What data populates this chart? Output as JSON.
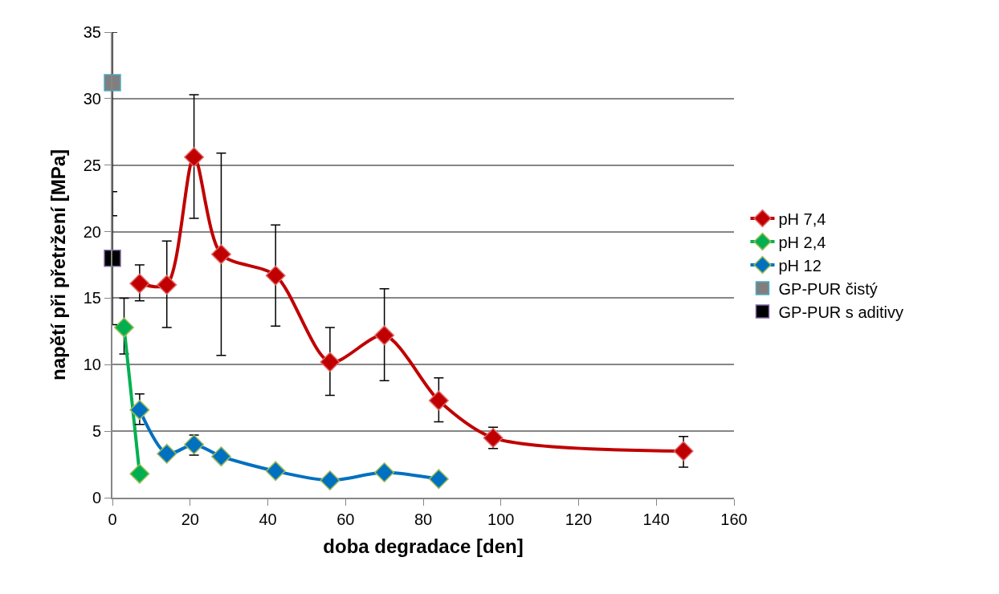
{
  "chart_data": {
    "type": "line",
    "xlabel": "doba degradace [den]",
    "ylabel": "napětí při přetržení [MPa]",
    "xlim": [
      0,
      160
    ],
    "xticks": [
      0,
      20,
      40,
      60,
      80,
      100,
      120,
      140,
      160
    ],
    "ylim": [
      0,
      35
    ],
    "yticks": [
      0,
      5,
      10,
      15,
      20,
      25,
      30,
      35
    ],
    "grid": "y",
    "legend": "right",
    "marker": "diamond",
    "line_style": "solid",
    "series": [
      {
        "name": "pH 7,4",
        "color": "#c00000",
        "x": [
          7,
          14,
          21,
          28,
          42,
          56,
          70,
          84,
          98,
          147
        ],
        "values": [
          16.1,
          16.0,
          25.6,
          18.3,
          16.7,
          10.2,
          12.2,
          7.3,
          4.5,
          3.5
        ],
        "errors": [
          [
            14.8,
            17.5
          ],
          [
            12.8,
            19.3
          ],
          [
            21.0,
            30.3
          ],
          [
            10.7,
            25.9
          ],
          [
            12.9,
            20.5
          ],
          [
            7.7,
            12.8
          ],
          [
            8.8,
            15.7
          ],
          [
            5.7,
            9.0
          ],
          [
            3.7,
            5.3
          ],
          [
            2.3,
            4.6
          ]
        ]
      },
      {
        "name": "pH 2,4",
        "color": "#00b050",
        "x": [
          3,
          7
        ],
        "values": [
          12.8,
          1.8
        ],
        "errors": [
          [
            10.8,
            15.0
          ],
          null
        ]
      },
      {
        "name": "pH 12",
        "color": "#0070c0",
        "x": [
          7,
          14,
          21,
          28,
          42,
          56,
          70,
          84
        ],
        "values": [
          6.6,
          3.3,
          4.0,
          3.1,
          2.0,
          1.3,
          1.9,
          1.4
        ],
        "errors": [
          [
            5.5,
            7.8
          ],
          null,
          [
            3.2,
            4.7
          ],
          null,
          null,
          null,
          null,
          null
        ]
      },
      {
        "name": "GP-PUR čistý",
        "color": "#7f7f7f",
        "type": "scatter",
        "marker": "square",
        "x": [
          0
        ],
        "values": [
          31.2
        ],
        "errors": [
          [
            21.2,
            35
          ]
        ]
      },
      {
        "name": "GP-PUR s aditivy",
        "color": "#000000",
        "type": "scatter",
        "marker": "square",
        "x": [
          0
        ],
        "values": [
          18.0
        ],
        "errors": [
          [
            13.0,
            23.0
          ]
        ]
      }
    ]
  }
}
